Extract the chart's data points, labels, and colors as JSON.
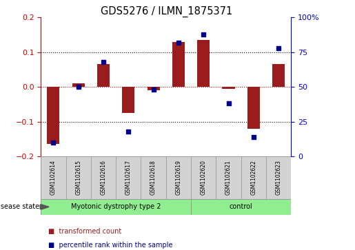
{
  "title": "GDS5276 / ILMN_1875371",
  "samples": [
    "GSM1102614",
    "GSM1102615",
    "GSM1102616",
    "GSM1102617",
    "GSM1102618",
    "GSM1102619",
    "GSM1102620",
    "GSM1102621",
    "GSM1102622",
    "GSM1102623"
  ],
  "transformed_count": [
    -0.165,
    0.01,
    0.065,
    -0.075,
    -0.01,
    0.13,
    0.135,
    -0.005,
    -0.12,
    0.065
  ],
  "percentile_rank": [
    10,
    50,
    68,
    18,
    48,
    82,
    88,
    38,
    14,
    78
  ],
  "disease_groups": [
    {
      "label": "Myotonic dystrophy type 2",
      "start": 0,
      "end": 6,
      "color": "#90EE90"
    },
    {
      "label": "control",
      "start": 6,
      "end": 10,
      "color": "#90EE90"
    }
  ],
  "bar_color": "#9B1C1C",
  "dot_color": "#00008B",
  "ylim_left": [
    -0.2,
    0.2
  ],
  "ylim_right": [
    0,
    100
  ],
  "yticks_left": [
    -0.2,
    -0.1,
    0.0,
    0.1,
    0.2
  ],
  "yticks_right": [
    0,
    25,
    50,
    75,
    100
  ],
  "hline_dotted": [
    -0.1,
    0.1
  ],
  "hline_red": 0.0,
  "legend_items": [
    {
      "label": "transformed count",
      "color": "#9B1C1C"
    },
    {
      "label": "percentile rank within the sample",
      "color": "#00008B"
    }
  ],
  "disease_state_label": "disease state",
  "label_box_color": "#D3D3D3",
  "left_axis_color": "#CC0000",
  "right_axis_color": "#0000CC"
}
